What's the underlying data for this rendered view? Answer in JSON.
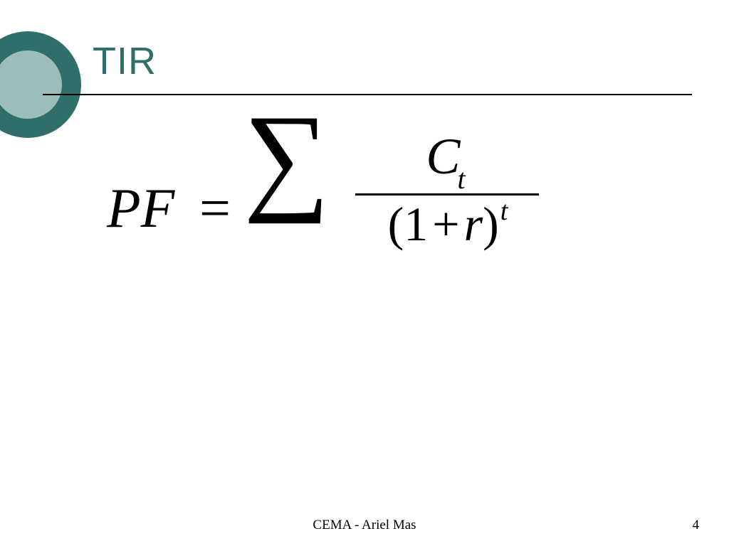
{
  "slide": {
    "title": "TIR",
    "title_color": "#2f6e6b",
    "decor": {
      "outer_color": "#2f6e6b",
      "inner_color": "#9dbdbb"
    },
    "rule_color": "#000000",
    "background_color": "#ffffff"
  },
  "formula": {
    "type": "equation",
    "lhs": "PF",
    "equals": "=",
    "sigma": "∑",
    "numerator_var": "C",
    "numerator_sub": "t",
    "denominator_open": "(",
    "denominator_one": "1",
    "denominator_plus": "+",
    "denominator_var": "r",
    "denominator_close": ")",
    "denominator_sup": "t",
    "font_family": "Times New Roman",
    "base_fontsize": 78,
    "color": "#000000"
  },
  "footer": {
    "author": "CEMA  - Ariel Mas",
    "page_number": "4",
    "fontsize": 19,
    "color": "#000000"
  }
}
